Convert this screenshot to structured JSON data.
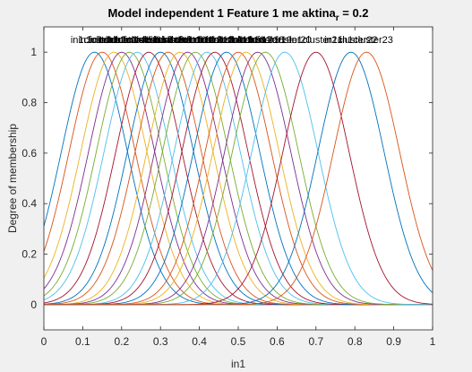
{
  "chart_data": {
    "type": "line",
    "title_main": "Model independent 1 Feature 1 me aktina",
    "title_sub": "r",
    "title_tail": " = 0.2",
    "xlabel": "in1",
    "ylabel": "Degree of membership",
    "xlim": [
      0,
      1
    ],
    "ylim": [
      -0.1,
      1.1
    ],
    "xticks": [
      "0",
      "0.1",
      "0.2",
      "0.3",
      "0.4",
      "0.5",
      "0.6",
      "0.7",
      "0.8",
      "0.9",
      "1"
    ],
    "yticks": [
      "0",
      "0.2",
      "0.4",
      "0.6",
      "0.8",
      "1"
    ],
    "sigma": 0.085,
    "series_colors": [
      "#0072bd",
      "#d95319",
      "#edb120",
      "#7e2f8e",
      "#77ac30",
      "#4dbeee",
      "#a2142f"
    ],
    "series": [
      {
        "name": "in1cluster1",
        "center": 0.13
      },
      {
        "name": "in1cluster2",
        "center": 0.15
      },
      {
        "name": "in1cluster3",
        "center": 0.18
      },
      {
        "name": "in1cluster4",
        "center": 0.2
      },
      {
        "name": "in1cluster5",
        "center": 0.22
      },
      {
        "name": "in1cluster6",
        "center": 0.24
      },
      {
        "name": "in1cluster7",
        "center": 0.27
      },
      {
        "name": "in1cluster8",
        "center": 0.3
      },
      {
        "name": "in1cluster9",
        "center": 0.32
      },
      {
        "name": "in1cluster10",
        "center": 0.35
      },
      {
        "name": "in1cluster11",
        "center": 0.37
      },
      {
        "name": "in1cluster12",
        "center": 0.39
      },
      {
        "name": "in1cluster13",
        "center": 0.42
      },
      {
        "name": "in1cluster14",
        "center": 0.44
      },
      {
        "name": "in1cluster15",
        "center": 0.47
      },
      {
        "name": "in1cluster16",
        "center": 0.5
      },
      {
        "name": "in1cluster17",
        "center": 0.52
      },
      {
        "name": "in1cluster18",
        "center": 0.55
      },
      {
        "name": "in1cluster19",
        "center": 0.57
      },
      {
        "name": "in1cluster20",
        "center": 0.62
      },
      {
        "name": "in1cluster21",
        "center": 0.7
      },
      {
        "name": "in1cluster22",
        "center": 0.79
      },
      {
        "name": "in1cluster23",
        "center": 0.83
      }
    ]
  }
}
